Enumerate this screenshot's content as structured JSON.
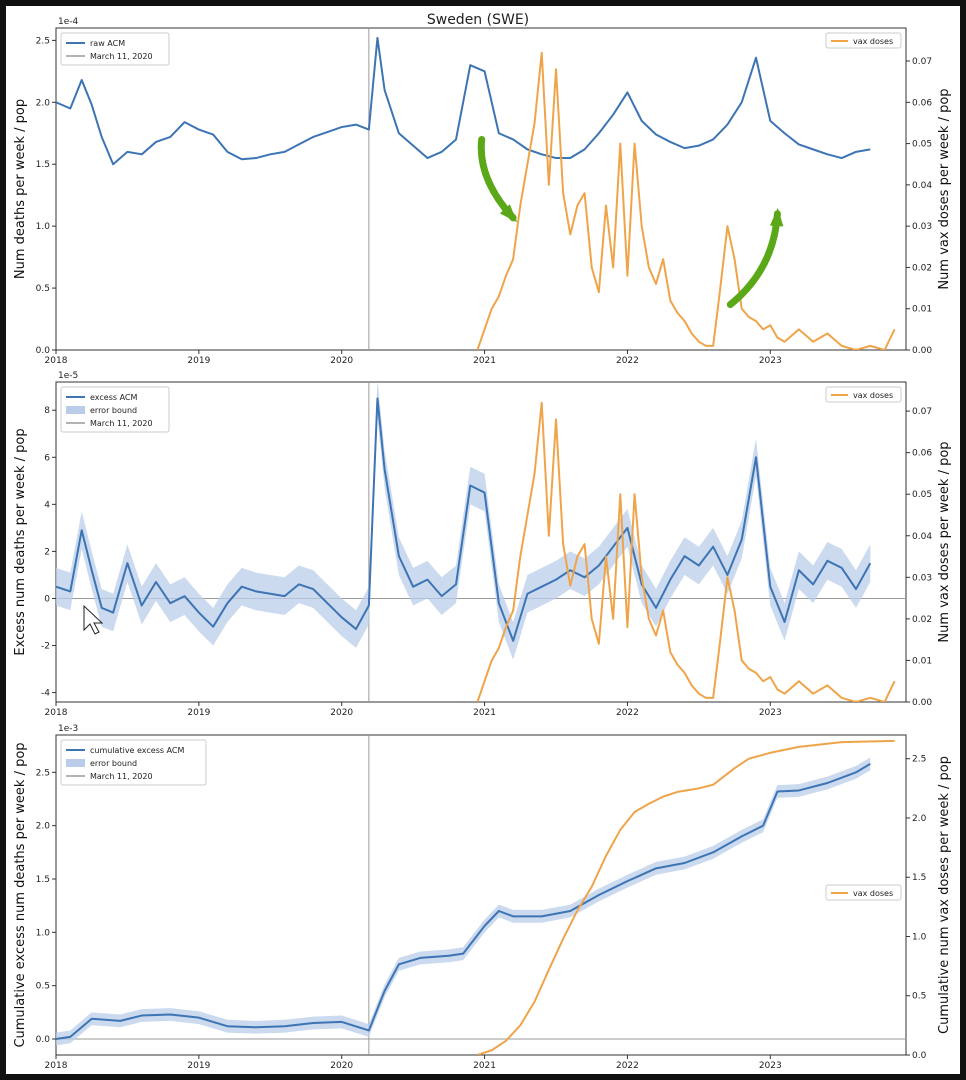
{
  "figure_title": "Sweden (SWE)",
  "colors": {
    "acm": "#3c74b4",
    "band": "#b9cdea",
    "vax": "#f0a44a",
    "march_line": "#9a9a9a",
    "zero_line": "#9a9a9a",
    "arrow": "#5aa818"
  },
  "chart_data": [
    {
      "type": "line",
      "title": "Sweden (SWE)",
      "ylabel_left": "Num deaths per week / pop",
      "ylabel_right": "Num vax doses per week / pop",
      "scale_left": "1e-4",
      "xlim": [
        2018.0,
        2023.95
      ],
      "ylim_left": [
        0,
        2.6
      ],
      "ylim_right": [
        0,
        0.078
      ],
      "xticks": [
        2018,
        2019,
        2020,
        2021,
        2022,
        2023
      ],
      "xtick_labels": [
        "2018",
        "2019",
        "2020",
        "2021",
        "2022",
        "2023"
      ],
      "yticks_left": [
        0.0,
        0.5,
        1.0,
        1.5,
        2.0,
        2.5
      ],
      "ytick_labels_left": [
        "0.0",
        "0.5",
        "1.0",
        "1.5",
        "2.0",
        "2.5"
      ],
      "yticks_right": [
        0.0,
        0.01,
        0.02,
        0.03,
        0.04,
        0.05,
        0.06,
        0.07
      ],
      "ytick_labels_right": [
        "0.00",
        "0.01",
        "0.02",
        "0.03",
        "0.04",
        "0.05",
        "0.06",
        "0.07"
      ],
      "march_line_x": 2020.19,
      "legend_left": [
        {
          "label": "raw ACM",
          "style": "line"
        },
        {
          "label": "March 11, 2020",
          "style": "grey"
        }
      ],
      "legend_right": [
        {
          "label": "vax doses",
          "style": "orange"
        }
      ],
      "series": [
        {
          "name": "raw ACM",
          "axis": "left",
          "x": [
            2018.0,
            2018.1,
            2018.18,
            2018.25,
            2018.32,
            2018.4,
            2018.5,
            2018.6,
            2018.7,
            2018.8,
            2018.9,
            2019.0,
            2019.1,
            2019.2,
            2019.3,
            2019.4,
            2019.5,
            2019.6,
            2019.7,
            2019.8,
            2019.9,
            2020.0,
            2020.1,
            2020.19,
            2020.25,
            2020.3,
            2020.4,
            2020.5,
            2020.6,
            2020.7,
            2020.8,
            2020.9,
            2021.0,
            2021.1,
            2021.2,
            2021.3,
            2021.4,
            2021.5,
            2021.6,
            2021.7,
            2021.8,
            2021.9,
            2022.0,
            2022.1,
            2022.2,
            2022.3,
            2022.4,
            2022.5,
            2022.6,
            2022.7,
            2022.8,
            2022.9,
            2023.0,
            2023.1,
            2023.2,
            2023.3,
            2023.4,
            2023.5,
            2023.6,
            2023.7
          ],
          "y": [
            2.0,
            1.95,
            2.18,
            1.98,
            1.72,
            1.5,
            1.6,
            1.58,
            1.68,
            1.72,
            1.84,
            1.78,
            1.74,
            1.6,
            1.54,
            1.55,
            1.58,
            1.6,
            1.66,
            1.72,
            1.76,
            1.8,
            1.82,
            1.78,
            2.52,
            2.1,
            1.75,
            1.65,
            1.55,
            1.6,
            1.7,
            2.3,
            2.25,
            1.75,
            1.7,
            1.62,
            1.58,
            1.55,
            1.55,
            1.62,
            1.75,
            1.9,
            2.08,
            1.85,
            1.74,
            1.68,
            1.63,
            1.65,
            1.7,
            1.82,
            2.0,
            2.36,
            1.85,
            1.75,
            1.66,
            1.62,
            1.58,
            1.55,
            1.6,
            1.62
          ]
        },
        {
          "name": "vax doses",
          "axis": "right",
          "x": [
            2020.95,
            2021.0,
            2021.05,
            2021.1,
            2021.15,
            2021.2,
            2021.25,
            2021.3,
            2021.35,
            2021.4,
            2021.45,
            2021.5,
            2021.55,
            2021.6,
            2021.65,
            2021.7,
            2021.75,
            2021.8,
            2021.85,
            2021.9,
            2021.95,
            2022.0,
            2022.05,
            2022.1,
            2022.15,
            2022.2,
            2022.25,
            2022.3,
            2022.35,
            2022.4,
            2022.45,
            2022.5,
            2022.55,
            2022.6,
            2022.65,
            2022.7,
            2022.75,
            2022.8,
            2022.85,
            2022.9,
            2022.95,
            2023.0,
            2023.05,
            2023.1,
            2023.2,
            2023.3,
            2023.4,
            2023.5,
            2023.6,
            2023.7,
            2023.8,
            2023.87
          ],
          "y": [
            0.0,
            0.005,
            0.01,
            0.013,
            0.018,
            0.022,
            0.035,
            0.045,
            0.055,
            0.072,
            0.04,
            0.068,
            0.038,
            0.028,
            0.035,
            0.038,
            0.02,
            0.014,
            0.035,
            0.02,
            0.05,
            0.018,
            0.05,
            0.03,
            0.02,
            0.016,
            0.022,
            0.012,
            0.009,
            0.007,
            0.004,
            0.002,
            0.001,
            0.001,
            0.015,
            0.03,
            0.022,
            0.01,
            0.008,
            0.007,
            0.005,
            0.006,
            0.003,
            0.002,
            0.005,
            0.002,
            0.004,
            0.001,
            0.0,
            0.001,
            0.0,
            0.005
          ]
        }
      ],
      "annotations": [
        {
          "type": "curved-arrow",
          "from": [
            2020.98,
            0.051
          ],
          "to": [
            2021.2,
            0.032
          ]
        },
        {
          "type": "curved-arrow",
          "from": [
            2022.72,
            0.011
          ],
          "to": [
            2023.05,
            0.033
          ]
        }
      ]
    },
    {
      "type": "line",
      "ylabel_left": "Excess num deaths per week / pop",
      "ylabel_right": "Num vax doses per week / pop",
      "scale_left": "1e-5",
      "xlim": [
        2018.0,
        2023.95
      ],
      "ylim_left": [
        -4.4,
        9.2
      ],
      "ylim_right": [
        0,
        0.077
      ],
      "xticks": [
        2018,
        2019,
        2020,
        2021,
        2022,
        2023
      ],
      "xtick_labels": [
        "2018",
        "2019",
        "2020",
        "2021",
        "2022",
        "2023"
      ],
      "yticks_left": [
        -4,
        -2,
        0,
        2,
        4,
        6,
        8
      ],
      "ytick_labels_left": [
        "-4",
        "-2",
        "0",
        "2",
        "4",
        "6",
        "8"
      ],
      "yticks_right": [
        0.0,
        0.01,
        0.02,
        0.03,
        0.04,
        0.05,
        0.06,
        0.07
      ],
      "ytick_labels_right": [
        "0.00",
        "0.01",
        "0.02",
        "0.03",
        "0.04",
        "0.05",
        "0.06",
        "0.07"
      ],
      "march_line_x": 2020.19,
      "zero_line": 0,
      "legend_left": [
        {
          "label": "excess ACM",
          "style": "line"
        },
        {
          "label": "error bound",
          "style": "band"
        },
        {
          "label": "March 11, 2020",
          "style": "grey"
        }
      ],
      "legend_right": [
        {
          "label": "vax doses",
          "style": "orange"
        }
      ],
      "series": [
        {
          "name": "excess ACM",
          "axis": "left",
          "band": 0.8,
          "x": [
            2018.0,
            2018.1,
            2018.18,
            2018.25,
            2018.32,
            2018.4,
            2018.5,
            2018.6,
            2018.7,
            2018.8,
            2018.9,
            2019.0,
            2019.1,
            2019.2,
            2019.3,
            2019.4,
            2019.5,
            2019.6,
            2019.7,
            2019.8,
            2019.9,
            2020.0,
            2020.1,
            2020.19,
            2020.25,
            2020.3,
            2020.4,
            2020.5,
            2020.6,
            2020.7,
            2020.8,
            2020.9,
            2021.0,
            2021.1,
            2021.2,
            2021.3,
            2021.4,
            2021.5,
            2021.6,
            2021.7,
            2021.8,
            2021.9,
            2022.0,
            2022.1,
            2022.2,
            2022.3,
            2022.4,
            2022.5,
            2022.6,
            2022.7,
            2022.8,
            2022.9,
            2023.0,
            2023.1,
            2023.2,
            2023.3,
            2023.4,
            2023.5,
            2023.6,
            2023.7
          ],
          "y": [
            0.5,
            0.3,
            2.9,
            1.2,
            -0.4,
            -0.6,
            1.5,
            -0.3,
            0.7,
            -0.2,
            0.1,
            -0.6,
            -1.2,
            -0.2,
            0.5,
            0.3,
            0.2,
            0.1,
            0.6,
            0.4,
            -0.2,
            -0.8,
            -1.3,
            -0.3,
            8.5,
            5.5,
            1.8,
            0.5,
            0.8,
            0.1,
            0.6,
            4.8,
            4.5,
            -0.2,
            -1.8,
            0.2,
            0.5,
            0.8,
            1.2,
            0.9,
            1.4,
            2.2,
            3.0,
            0.6,
            -0.4,
            0.8,
            1.8,
            1.4,
            2.2,
            1.0,
            2.5,
            6.0,
            0.5,
            -1.0,
            1.2,
            0.6,
            1.6,
            1.3,
            0.4,
            1.5
          ]
        },
        {
          "name": "vax doses",
          "axis": "right",
          "x": [
            2020.95,
            2021.0,
            2021.05,
            2021.1,
            2021.15,
            2021.2,
            2021.25,
            2021.3,
            2021.35,
            2021.4,
            2021.45,
            2021.5,
            2021.55,
            2021.6,
            2021.65,
            2021.7,
            2021.75,
            2021.8,
            2021.85,
            2021.9,
            2021.95,
            2022.0,
            2022.05,
            2022.1,
            2022.15,
            2022.2,
            2022.25,
            2022.3,
            2022.35,
            2022.4,
            2022.45,
            2022.5,
            2022.55,
            2022.6,
            2022.65,
            2022.7,
            2022.75,
            2022.8,
            2022.85,
            2022.9,
            2022.95,
            2023.0,
            2023.05,
            2023.1,
            2023.2,
            2023.3,
            2023.4,
            2023.5,
            2023.6,
            2023.7,
            2023.8,
            2023.87
          ],
          "y": [
            0.0,
            0.005,
            0.01,
            0.013,
            0.018,
            0.022,
            0.035,
            0.045,
            0.055,
            0.072,
            0.04,
            0.068,
            0.038,
            0.028,
            0.035,
            0.038,
            0.02,
            0.014,
            0.035,
            0.02,
            0.05,
            0.018,
            0.05,
            0.03,
            0.02,
            0.016,
            0.022,
            0.012,
            0.009,
            0.007,
            0.004,
            0.002,
            0.001,
            0.001,
            0.015,
            0.03,
            0.022,
            0.01,
            0.008,
            0.007,
            0.005,
            0.006,
            0.003,
            0.002,
            0.005,
            0.002,
            0.004,
            0.001,
            0.0,
            0.001,
            0.0,
            0.005
          ]
        }
      ]
    },
    {
      "type": "line",
      "ylabel_left": "Cumulative excess num deaths per week / pop",
      "ylabel_right": "Cumulative num vax doses per week / pop",
      "scale_left": "1e-3",
      "xlim": [
        2018.0,
        2023.95
      ],
      "ylim_left": [
        -0.15,
        2.85
      ],
      "ylim_right": [
        0,
        2.7
      ],
      "xticks": [
        2018,
        2019,
        2020,
        2021,
        2022,
        2023
      ],
      "xtick_labels": [
        "2018",
        "2019",
        "2020",
        "2021",
        "2022",
        "2023"
      ],
      "yticks_left": [
        0.0,
        0.5,
        1.0,
        1.5,
        2.0,
        2.5
      ],
      "ytick_labels_left": [
        "0.0",
        "0.5",
        "1.0",
        "1.5",
        "2.0",
        "2.5"
      ],
      "yticks_right": [
        0.0,
        0.5,
        1.0,
        1.5,
        2.0,
        2.5
      ],
      "ytick_labels_right": [
        "0.0",
        "0.5",
        "1.0",
        "1.5",
        "2.0",
        "2.5"
      ],
      "march_line_x": 2020.19,
      "zero_line": 0,
      "legend_left": [
        {
          "label": "cumulative excess ACM",
          "style": "line"
        },
        {
          "label": "error bound",
          "style": "band"
        },
        {
          "label": "March 11, 2020",
          "style": "grey"
        }
      ],
      "legend_right": [
        {
          "label": "vax doses",
          "style": "orange"
        }
      ],
      "legend_right_placement": "center-right",
      "series": [
        {
          "name": "cumulative excess ACM",
          "axis": "left",
          "band": 0.06,
          "x": [
            2018.0,
            2018.1,
            2018.25,
            2018.45,
            2018.6,
            2018.8,
            2019.0,
            2019.2,
            2019.4,
            2019.6,
            2019.8,
            2020.0,
            2020.19,
            2020.3,
            2020.4,
            2020.55,
            2020.75,
            2020.85,
            2021.0,
            2021.1,
            2021.2,
            2021.4,
            2021.6,
            2021.8,
            2022.0,
            2022.2,
            2022.4,
            2022.6,
            2022.8,
            2022.95,
            2023.05,
            2023.2,
            2023.4,
            2023.6,
            2023.7
          ],
          "y": [
            0.0,
            0.02,
            0.19,
            0.17,
            0.22,
            0.23,
            0.2,
            0.12,
            0.11,
            0.12,
            0.15,
            0.16,
            0.08,
            0.45,
            0.7,
            0.76,
            0.78,
            0.8,
            1.06,
            1.2,
            1.15,
            1.15,
            1.2,
            1.35,
            1.48,
            1.6,
            1.65,
            1.75,
            1.9,
            2.0,
            2.32,
            2.33,
            2.4,
            2.5,
            2.58
          ]
        },
        {
          "name": "vax doses",
          "axis": "right",
          "x": [
            2020.95,
            2021.05,
            2021.15,
            2021.25,
            2021.35,
            2021.45,
            2021.55,
            2021.65,
            2021.75,
            2021.85,
            2021.95,
            2022.05,
            2022.15,
            2022.25,
            2022.35,
            2022.5,
            2022.6,
            2022.75,
            2022.85,
            2023.0,
            2023.2,
            2023.5,
            2023.87
          ],
          "y": [
            0.0,
            0.04,
            0.12,
            0.25,
            0.45,
            0.72,
            0.98,
            1.22,
            1.42,
            1.68,
            1.9,
            2.05,
            2.12,
            2.18,
            2.22,
            2.25,
            2.28,
            2.42,
            2.5,
            2.55,
            2.6,
            2.64,
            2.65
          ]
        }
      ]
    }
  ]
}
